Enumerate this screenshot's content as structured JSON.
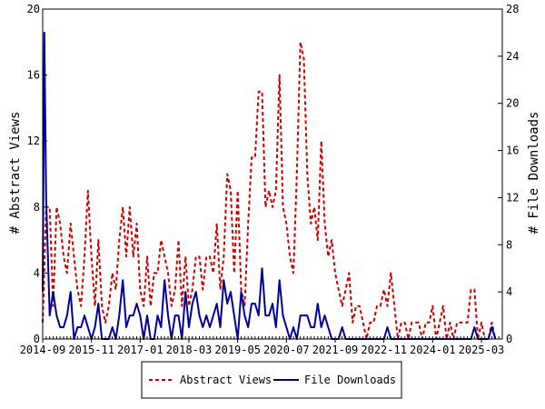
{
  "chart_data": {
    "type": "line",
    "y_left": {
      "label": "# Abstract Views",
      "range": [
        0,
        20
      ],
      "ticks": [
        "0",
        "4",
        "8",
        "12",
        "16",
        "20"
      ]
    },
    "y_right": {
      "label": "# File Downloads",
      "range": [
        0,
        28
      ],
      "ticks": [
        "0",
        "4",
        "8",
        "12",
        "16",
        "20",
        "24",
        "28"
      ]
    },
    "x_range": [
      "2014-09",
      "2025-09"
    ],
    "x_ticks": [
      "2014-09",
      "2015-11",
      "2017-01",
      "2018-03",
      "2019-05",
      "2020-07",
      "2021-09",
      "2022-11",
      "2024-01",
      "2025-03"
    ],
    "grid": false,
    "legend_position": "bottom",
    "series": [
      {
        "name": "Abstract Views",
        "axis": "left",
        "color": "#cc0000",
        "style": "dashed",
        "points": [
          [
            "2014-09",
            1
          ],
          [
            "2014-10",
            8
          ],
          [
            "2014-11",
            8
          ],
          [
            "2014-12",
            2
          ],
          [
            "2015-01",
            8
          ],
          [
            "2015-02",
            7
          ],
          [
            "2015-03",
            5
          ],
          [
            "2015-04",
            4
          ],
          [
            "2015-05",
            7
          ],
          [
            "2015-06",
            5
          ],
          [
            "2015-07",
            3
          ],
          [
            "2015-08",
            2
          ],
          [
            "2015-09",
            5
          ],
          [
            "2015-10",
            9
          ],
          [
            "2015-11",
            5
          ],
          [
            "2015-12",
            2
          ],
          [
            "2016-01",
            6
          ],
          [
            "2016-02",
            2
          ],
          [
            "2016-03",
            1
          ],
          [
            "2016-04",
            2
          ],
          [
            "2016-05",
            4
          ],
          [
            "2016-06",
            3
          ],
          [
            "2016-07",
            6
          ],
          [
            "2016-08",
            8
          ],
          [
            "2016-09",
            5
          ],
          [
            "2016-10",
            8
          ],
          [
            "2016-11",
            5
          ],
          [
            "2016-12",
            7
          ],
          [
            "2017-01",
            3
          ],
          [
            "2017-02",
            2
          ],
          [
            "2017-03",
            5
          ],
          [
            "2017-04",
            2
          ],
          [
            "2017-05",
            4
          ],
          [
            "2017-06",
            4
          ],
          [
            "2017-07",
            6
          ],
          [
            "2017-08",
            5
          ],
          [
            "2017-09",
            4
          ],
          [
            "2017-10",
            2
          ],
          [
            "2017-11",
            3
          ],
          [
            "2017-12",
            6
          ],
          [
            "2018-01",
            2
          ],
          [
            "2018-02",
            5
          ],
          [
            "2018-03",
            2
          ],
          [
            "2018-04",
            3
          ],
          [
            "2018-05",
            5
          ],
          [
            "2018-06",
            5
          ],
          [
            "2018-07",
            3
          ],
          [
            "2018-08",
            5
          ],
          [
            "2018-09",
            5
          ],
          [
            "2018-10",
            4
          ],
          [
            "2018-11",
            7
          ],
          [
            "2018-12",
            3
          ],
          [
            "2019-01",
            5
          ],
          [
            "2019-02",
            10
          ],
          [
            "2019-03",
            9
          ],
          [
            "2019-04",
            4
          ],
          [
            "2019-05",
            9
          ],
          [
            "2019-06",
            3
          ],
          [
            "2019-07",
            2
          ],
          [
            "2019-08",
            7
          ],
          [
            "2019-09",
            11
          ],
          [
            "2019-10",
            11
          ],
          [
            "2019-11",
            15
          ],
          [
            "2019-12",
            15
          ],
          [
            "2020-01",
            8
          ],
          [
            "2020-02",
            9
          ],
          [
            "2020-03",
            8
          ],
          [
            "2020-04",
            9
          ],
          [
            "2020-05",
            16
          ],
          [
            "2020-06",
            8
          ],
          [
            "2020-07",
            7
          ],
          [
            "2020-08",
            5
          ],
          [
            "2020-09",
            4
          ],
          [
            "2020-10",
            10
          ],
          [
            "2020-11",
            18
          ],
          [
            "2020-12",
            17
          ],
          [
            "2021-01",
            10
          ],
          [
            "2021-02",
            7
          ],
          [
            "2021-03",
            8
          ],
          [
            "2021-04",
            6
          ],
          [
            "2021-05",
            12
          ],
          [
            "2021-06",
            7
          ],
          [
            "2021-07",
            5
          ],
          [
            "2021-08",
            6
          ],
          [
            "2021-09",
            4
          ],
          [
            "2021-10",
            3
          ],
          [
            "2021-11",
            2
          ],
          [
            "2021-12",
            3
          ],
          [
            "2022-01",
            4
          ],
          [
            "2022-02",
            1
          ],
          [
            "2022-03",
            2
          ],
          [
            "2022-04",
            2
          ],
          [
            "2022-05",
            1
          ],
          [
            "2022-06",
            0
          ],
          [
            "2022-07",
            1
          ],
          [
            "2022-08",
            1
          ],
          [
            "2022-09",
            2
          ],
          [
            "2022-10",
            2
          ],
          [
            "2022-11",
            3
          ],
          [
            "2022-12",
            2
          ],
          [
            "2023-01",
            4
          ],
          [
            "2023-02",
            2
          ],
          [
            "2023-03",
            0
          ],
          [
            "2023-04",
            1
          ],
          [
            "2023-05",
            1
          ],
          [
            "2023-06",
            0
          ],
          [
            "2023-07",
            1
          ],
          [
            "2023-08",
            1
          ],
          [
            "2023-09",
            1
          ],
          [
            "2023-10",
            0
          ],
          [
            "2023-11",
            1
          ],
          [
            "2023-12",
            1
          ],
          [
            "2024-01",
            2
          ],
          [
            "2024-02",
            0
          ],
          [
            "2024-03",
            1
          ],
          [
            "2024-04",
            2
          ],
          [
            "2024-05",
            0
          ],
          [
            "2024-06",
            1
          ],
          [
            "2024-07",
            0
          ],
          [
            "2024-08",
            1
          ],
          [
            "2024-09",
            1
          ],
          [
            "2024-10",
            1
          ],
          [
            "2024-11",
            1
          ],
          [
            "2024-12",
            3
          ],
          [
            "2025-01",
            3
          ],
          [
            "2025-02",
            0
          ],
          [
            "2025-03",
            1
          ],
          [
            "2025-04",
            0
          ],
          [
            "2025-05",
            0
          ],
          [
            "2025-06",
            1
          ],
          [
            "2025-07",
            0
          ]
        ]
      },
      {
        "name": "File Downloads",
        "axis": "right",
        "color": "#000099",
        "style": "solid",
        "points": [
          [
            "2014-09",
            4
          ],
          [
            "2014-09-15",
            26
          ],
          [
            "2014-10",
            12
          ],
          [
            "2014-11",
            2
          ],
          [
            "2014-12",
            4
          ],
          [
            "2015-01",
            2
          ],
          [
            "2015-02",
            1
          ],
          [
            "2015-03",
            1
          ],
          [
            "2015-04",
            2
          ],
          [
            "2015-05",
            4
          ],
          [
            "2015-06",
            0
          ],
          [
            "2015-07",
            1
          ],
          [
            "2015-08",
            1
          ],
          [
            "2015-09",
            2
          ],
          [
            "2015-10",
            1
          ],
          [
            "2015-11",
            0
          ],
          [
            "2015-12",
            1
          ],
          [
            "2016-01",
            3
          ],
          [
            "2016-02",
            0
          ],
          [
            "2016-03",
            0
          ],
          [
            "2016-04",
            0
          ],
          [
            "2016-05",
            1
          ],
          [
            "2016-06",
            0
          ],
          [
            "2016-07",
            2
          ],
          [
            "2016-08",
            5
          ],
          [
            "2016-09",
            1
          ],
          [
            "2016-10",
            2
          ],
          [
            "2016-11",
            2
          ],
          [
            "2016-12",
            3
          ],
          [
            "2017-01",
            2
          ],
          [
            "2017-02",
            0
          ],
          [
            "2017-03",
            2
          ],
          [
            "2017-04",
            0
          ],
          [
            "2017-05",
            0
          ],
          [
            "2017-06",
            2
          ],
          [
            "2017-07",
            1
          ],
          [
            "2017-08",
            5
          ],
          [
            "2017-09",
            2
          ],
          [
            "2017-10",
            0
          ],
          [
            "2017-11",
            2
          ],
          [
            "2017-12",
            2
          ],
          [
            "2018-01",
            0
          ],
          [
            "2018-02",
            4
          ],
          [
            "2018-03",
            1
          ],
          [
            "2018-04",
            3
          ],
          [
            "2018-05",
            4
          ],
          [
            "2018-06",
            2
          ],
          [
            "2018-07",
            1
          ],
          [
            "2018-08",
            2
          ],
          [
            "2018-09",
            1
          ],
          [
            "2018-10",
            2
          ],
          [
            "2018-11",
            3
          ],
          [
            "2018-12",
            1
          ],
          [
            "2019-01",
            5
          ],
          [
            "2019-02",
            3
          ],
          [
            "2019-03",
            4
          ],
          [
            "2019-04",
            2
          ],
          [
            "2019-05",
            0
          ],
          [
            "2019-06",
            4
          ],
          [
            "2019-07",
            2
          ],
          [
            "2019-08",
            1
          ],
          [
            "2019-09",
            3
          ],
          [
            "2019-10",
            3
          ],
          [
            "2019-11",
            2
          ],
          [
            "2019-12",
            6
          ],
          [
            "2020-01",
            2
          ],
          [
            "2020-02",
            2
          ],
          [
            "2020-03",
            3
          ],
          [
            "2020-04",
            1
          ],
          [
            "2020-05",
            5
          ],
          [
            "2020-06",
            2
          ],
          [
            "2020-07",
            1
          ],
          [
            "2020-08",
            0
          ],
          [
            "2020-09",
            1
          ],
          [
            "2020-10",
            0
          ],
          [
            "2020-11",
            2
          ],
          [
            "2020-12",
            2
          ],
          [
            "2021-01",
            2
          ],
          [
            "2021-02",
            1
          ],
          [
            "2021-03",
            1
          ],
          [
            "2021-04",
            3
          ],
          [
            "2021-05",
            1
          ],
          [
            "2021-06",
            2
          ],
          [
            "2021-07",
            1
          ],
          [
            "2021-08",
            0
          ],
          [
            "2021-09",
            0
          ],
          [
            "2021-10",
            0
          ],
          [
            "2021-11",
            1
          ],
          [
            "2021-12",
            0
          ],
          [
            "2022-01",
            0
          ],
          [
            "2022-02",
            0
          ],
          [
            "2022-03",
            0
          ],
          [
            "2022-04",
            0
          ],
          [
            "2022-05",
            0
          ],
          [
            "2022-06",
            0
          ],
          [
            "2022-07",
            0
          ],
          [
            "2022-08",
            0
          ],
          [
            "2022-09",
            0
          ],
          [
            "2022-10",
            0
          ],
          [
            "2022-11",
            0
          ],
          [
            "2022-12",
            1
          ],
          [
            "2023-01",
            0
          ],
          [
            "2023-02",
            0
          ],
          [
            "2023-03",
            0
          ],
          [
            "2023-04",
            0
          ],
          [
            "2023-05",
            0
          ],
          [
            "2023-06",
            0
          ],
          [
            "2023-07",
            0
          ],
          [
            "2023-08",
            0
          ],
          [
            "2023-09",
            0
          ],
          [
            "2023-10",
            0
          ],
          [
            "2023-11",
            0
          ],
          [
            "2023-12",
            0
          ],
          [
            "2024-01",
            0
          ],
          [
            "2024-02",
            0
          ],
          [
            "2024-03",
            0
          ],
          [
            "2024-04",
            0
          ],
          [
            "2024-05",
            0
          ],
          [
            "2024-06",
            0
          ],
          [
            "2024-07",
            0
          ],
          [
            "2024-08",
            0
          ],
          [
            "2024-09",
            0
          ],
          [
            "2024-10",
            0
          ],
          [
            "2024-11",
            0
          ],
          [
            "2024-12",
            0
          ],
          [
            "2025-01",
            1
          ],
          [
            "2025-02",
            0
          ],
          [
            "2025-03",
            0
          ],
          [
            "2025-04",
            0
          ],
          [
            "2025-05",
            0
          ],
          [
            "2025-06",
            1
          ],
          [
            "2025-07",
            0
          ]
        ]
      }
    ]
  }
}
